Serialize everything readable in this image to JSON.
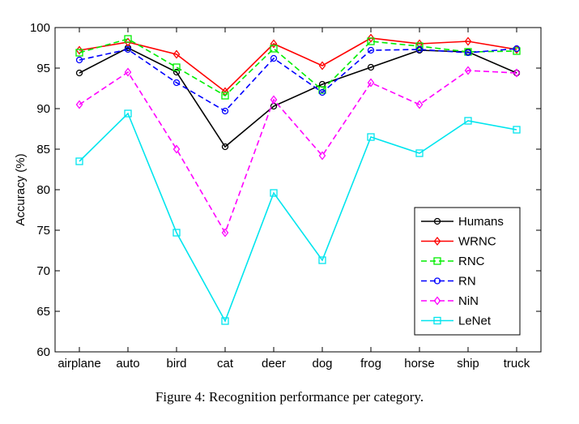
{
  "caption": "Figure 4: Recognition performance per category.",
  "chart_data": {
    "type": "line",
    "title": "",
    "xlabel": "",
    "ylabel": "Accuracy (%)",
    "ylim": [
      60,
      100
    ],
    "yticks": [
      60,
      65,
      70,
      75,
      80,
      85,
      90,
      95,
      100
    ],
    "categories": [
      "airplane",
      "auto",
      "bird",
      "cat",
      "deer",
      "dog",
      "frog",
      "horse",
      "ship",
      "truck"
    ],
    "grid": false,
    "legend_position": "bottom-right",
    "series": [
      {
        "name": "Humans",
        "color": "#000000",
        "dash": "solid",
        "marker": "circle",
        "values": [
          94.4,
          97.5,
          94.5,
          85.3,
          90.3,
          93.0,
          95.1,
          97.2,
          97.0,
          94.4
        ]
      },
      {
        "name": "WRNC",
        "color": "#ff0000",
        "dash": "solid",
        "marker": "diamond",
        "values": [
          97.2,
          98.2,
          96.7,
          92.1,
          98.0,
          95.3,
          98.7,
          98.0,
          98.3,
          97.3
        ]
      },
      {
        "name": "RNC",
        "color": "#00ee00",
        "dash": "dashed",
        "marker": "square",
        "values": [
          96.9,
          98.6,
          95.1,
          91.6,
          97.4,
          92.3,
          98.3,
          97.7,
          97.0,
          97.1
        ]
      },
      {
        "name": "RN",
        "color": "#0000ff",
        "dash": "dashed",
        "marker": "circle",
        "values": [
          96.0,
          97.3,
          93.2,
          89.7,
          96.2,
          92.0,
          97.2,
          97.3,
          96.9,
          97.4
        ]
      },
      {
        "name": "NiN",
        "color": "#ff00ff",
        "dash": "dashed",
        "marker": "diamond",
        "values": [
          90.5,
          94.5,
          85.0,
          74.7,
          91.1,
          84.2,
          93.2,
          90.5,
          94.7,
          94.4
        ]
      },
      {
        "name": "LeNet",
        "color": "#00e5ee",
        "dash": "solid",
        "marker": "square",
        "values": [
          83.5,
          89.4,
          74.7,
          63.8,
          79.6,
          71.3,
          86.5,
          84.5,
          88.5,
          87.4
        ]
      }
    ]
  }
}
